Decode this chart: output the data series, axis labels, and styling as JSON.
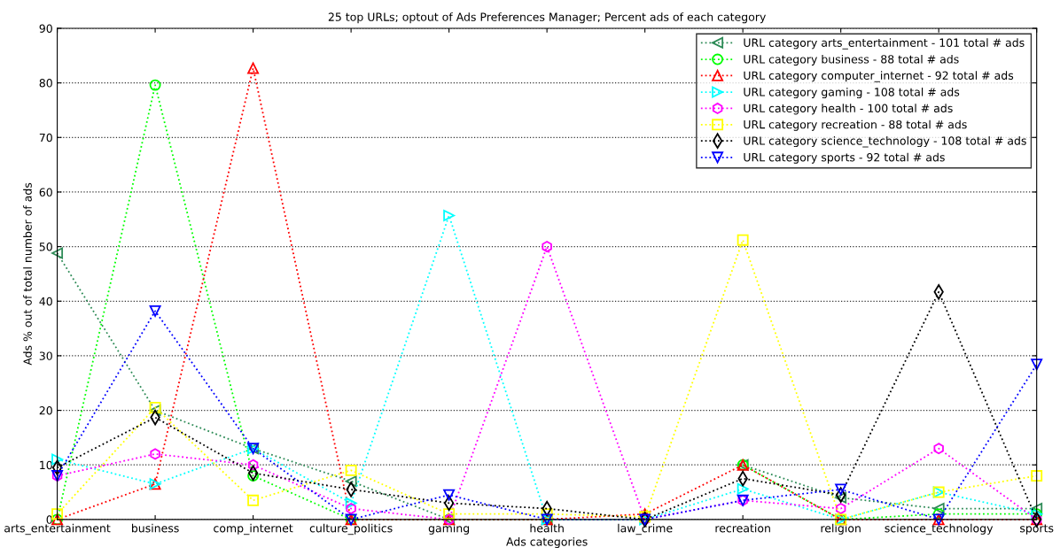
{
  "chart_data": {
    "type": "line",
    "title": "25 top URLs; optout of Ads Preferences Manager; Percent ads of each category",
    "xlabel": "Ads categories",
    "ylabel": "Ads % out of total number of ads",
    "categories": [
      "arts_entertainment",
      "business",
      "comp_internet",
      "culture_politics",
      "gaming",
      "health",
      "law_crime",
      "recreation",
      "religion",
      "science_technology",
      "sports"
    ],
    "series": [
      {
        "name": "URL category arts_entertainment - 101 total # ads",
        "color": "#2e8b57",
        "marker": "triangle_left",
        "values": [
          48.8,
          20,
          13,
          7,
          0,
          0,
          null,
          10,
          4,
          2,
          2
        ]
      },
      {
        "name": "URL category business - 88 total # ads",
        "color": "#00ff00",
        "marker": "circle",
        "values": [
          0,
          79.6,
          8,
          0,
          0,
          0,
          null,
          10,
          0,
          1,
          1
        ]
      },
      {
        "name": "URL category computer_internet - 92 total # ads",
        "color": "#ff0000",
        "marker": "triangle",
        "values": [
          0,
          6.5,
          82.7,
          0,
          0,
          0,
          1,
          10,
          0,
          0,
          0
        ]
      },
      {
        "name": "URL category gaming - 108 total # ads",
        "color": "#00ffff",
        "marker": "triangle_right",
        "values": [
          11,
          6.5,
          13,
          3,
          55.7,
          0,
          0,
          5.6,
          0,
          5,
          1
        ]
      },
      {
        "name": "URL category health - 100 total # ads",
        "color": "#ff00ff",
        "marker": "star",
        "values": [
          8,
          12,
          10,
          2,
          0,
          50,
          0,
          3.5,
          2,
          13,
          0
        ]
      },
      {
        "name": "URL category recreation - 88 total # ads",
        "color": "#ffff00",
        "marker": "square",
        "values": [
          1,
          20.5,
          3.5,
          9,
          1,
          1,
          0.5,
          51.2,
          0,
          5,
          8
        ]
      },
      {
        "name": "URL category science_technology - 108 total # ads",
        "color": "#000000",
        "marker": "diamond",
        "values": [
          9.5,
          18.7,
          8.5,
          5.5,
          3,
          2,
          0,
          7.5,
          4.5,
          41.7,
          0
        ]
      },
      {
        "name": "URL category sports - 92 total # ads",
        "color": "#0000ff",
        "marker": "triangle_down",
        "values": [
          8,
          38.2,
          13,
          0,
          4.5,
          0,
          0,
          3.5,
          5.5,
          0,
          28.4
        ]
      }
    ],
    "ylim": [
      0,
      90
    ],
    "yticks": [
      0,
      10,
      20,
      30,
      40,
      50,
      60,
      70,
      80,
      90
    ],
    "grid": "y",
    "legend": "top right",
    "line_style": "dotted"
  }
}
